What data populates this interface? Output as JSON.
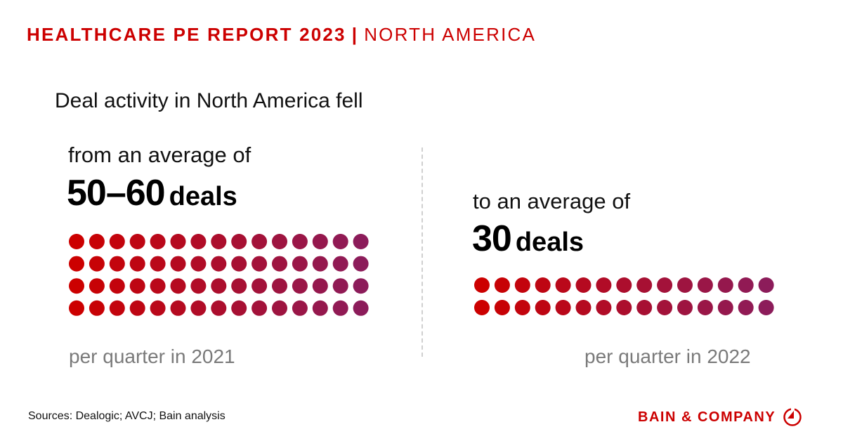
{
  "header": {
    "title_bold": "HEALTHCARE PE REPORT 2023",
    "separator": "|",
    "title_region": "NORTH AMERICA"
  },
  "headline": "Deal activity in North America fell",
  "left": {
    "lead": "from an average of",
    "value": "50–60",
    "unit": "deals",
    "footnote": "per quarter in 2021"
  },
  "right": {
    "lead": "to an average of",
    "value": "30",
    "unit": "deals",
    "footnote": "per quarter in 2022"
  },
  "source": "Sources: Dealogic; AVCJ; Bain analysis",
  "logo": {
    "text": "BAIN & COMPANY",
    "icon": "bain-compass-icon"
  },
  "colors": {
    "accent": "#cc0000",
    "dot_start": "#cc0000",
    "dot_end": "#8c1c5a",
    "muted_text": "#7a7a7a"
  },
  "chart_data": [
    {
      "type": "dot",
      "label": "per quarter in 2021",
      "value_text": "50–60 deals",
      "dots": 60,
      "rows": 4,
      "columns": 15
    },
    {
      "type": "dot",
      "label": "per quarter in 2022",
      "value_text": "30 deals",
      "dots": 30,
      "rows": 2,
      "columns": 15
    }
  ]
}
